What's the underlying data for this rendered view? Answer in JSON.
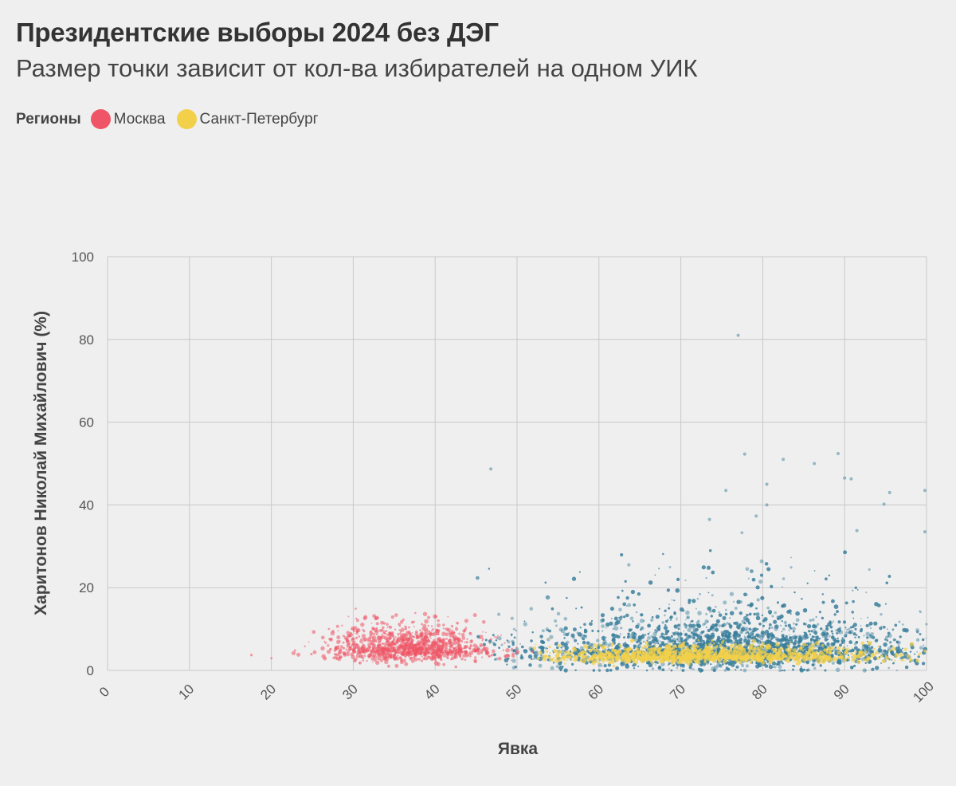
{
  "header": {
    "title": "Президентские выборы 2024 без ДЭГ",
    "subtitle": "Размер точки зависит от кол-ва избирателей на одном УИК"
  },
  "legend": {
    "title": "Регионы",
    "items": [
      {
        "label": "Москва",
        "color": "#ef5566"
      },
      {
        "label": "Санкт-Петербург",
        "color": "#f2d04a"
      }
    ]
  },
  "chart_data": {
    "type": "scatter",
    "xlabel": "Явка",
    "ylabel": "Харитонов Николай Михайлович (%)",
    "xlim": [
      0,
      100
    ],
    "ylim": [
      0,
      100
    ],
    "x_ticks": [
      "0",
      "10",
      "20",
      "30",
      "40",
      "50",
      "60",
      "70",
      "80",
      "90",
      "100"
    ],
    "y_ticks": [
      "0",
      "20",
      "40",
      "60",
      "80",
      "100"
    ],
    "grid": true,
    "legend_position": "top-left",
    "series": [
      {
        "name": "",
        "color": "#3a7f9b",
        "x_center": 75,
        "x_spread": 12,
        "x_range": [
          45,
          100
        ],
        "y_center": 5,
        "y_spread": 3.5
      },
      {
        "name": "Москва",
        "color": "#ef5566",
        "x_center": 37,
        "x_spread": 5,
        "x_range": [
          15,
          52
        ],
        "y_center": 5.5,
        "y_spread": 2.5
      },
      {
        "name": "Санкт-Петербург",
        "color": "#f2d04a",
        "x_center": 73,
        "x_spread": 10,
        "x_range": [
          52,
          100
        ],
        "y_center": 3.5,
        "y_spread": 1.2
      }
    ],
    "outliers": [
      {
        "x": 77.0,
        "y": 81.0
      },
      {
        "x": 46.8,
        "y": 48.7
      },
      {
        "x": 77.8,
        "y": 52.3
      },
      {
        "x": 80.5,
        "y": 45.0
      },
      {
        "x": 82.5,
        "y": 51.0
      },
      {
        "x": 89.2,
        "y": 52.4
      },
      {
        "x": 86.3,
        "y": 50.0
      },
      {
        "x": 90.0,
        "y": 46.5
      },
      {
        "x": 90.8,
        "y": 46.3
      },
      {
        "x": 95.5,
        "y": 43.0
      },
      {
        "x": 94.8,
        "y": 40.2
      },
      {
        "x": 80.5,
        "y": 40.0
      },
      {
        "x": 79.2,
        "y": 37.3
      },
      {
        "x": 99.8,
        "y": 43.5
      },
      {
        "x": 75.5,
        "y": 43.5
      },
      {
        "x": 99.8,
        "y": 33.5
      },
      {
        "x": 91.5,
        "y": 33.8
      },
      {
        "x": 73.5,
        "y": 36.5
      }
    ]
  }
}
